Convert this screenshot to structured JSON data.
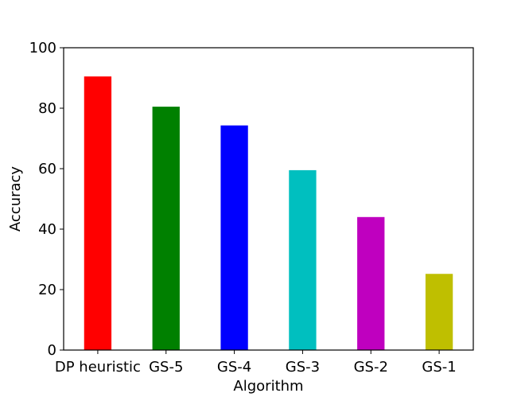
{
  "chart_data": {
    "type": "bar",
    "categories": [
      "DP heuristic",
      "GS-5",
      "GS-4",
      "GS-3",
      "GS-2",
      "GS-1"
    ],
    "values": [
      90.5,
      80.5,
      74.3,
      59.5,
      44.0,
      25.2
    ],
    "colors": [
      "#ff0000",
      "#008000",
      "#0000ff",
      "#00bfbf",
      "#bf00bf",
      "#bfbf00"
    ],
    "title": "",
    "xlabel": "Algorithm",
    "ylabel": "Accuracy",
    "ylim": [
      0,
      100
    ],
    "yticks": [
      "0",
      "20",
      "40",
      "60",
      "80",
      "100"
    ],
    "grid": false
  }
}
